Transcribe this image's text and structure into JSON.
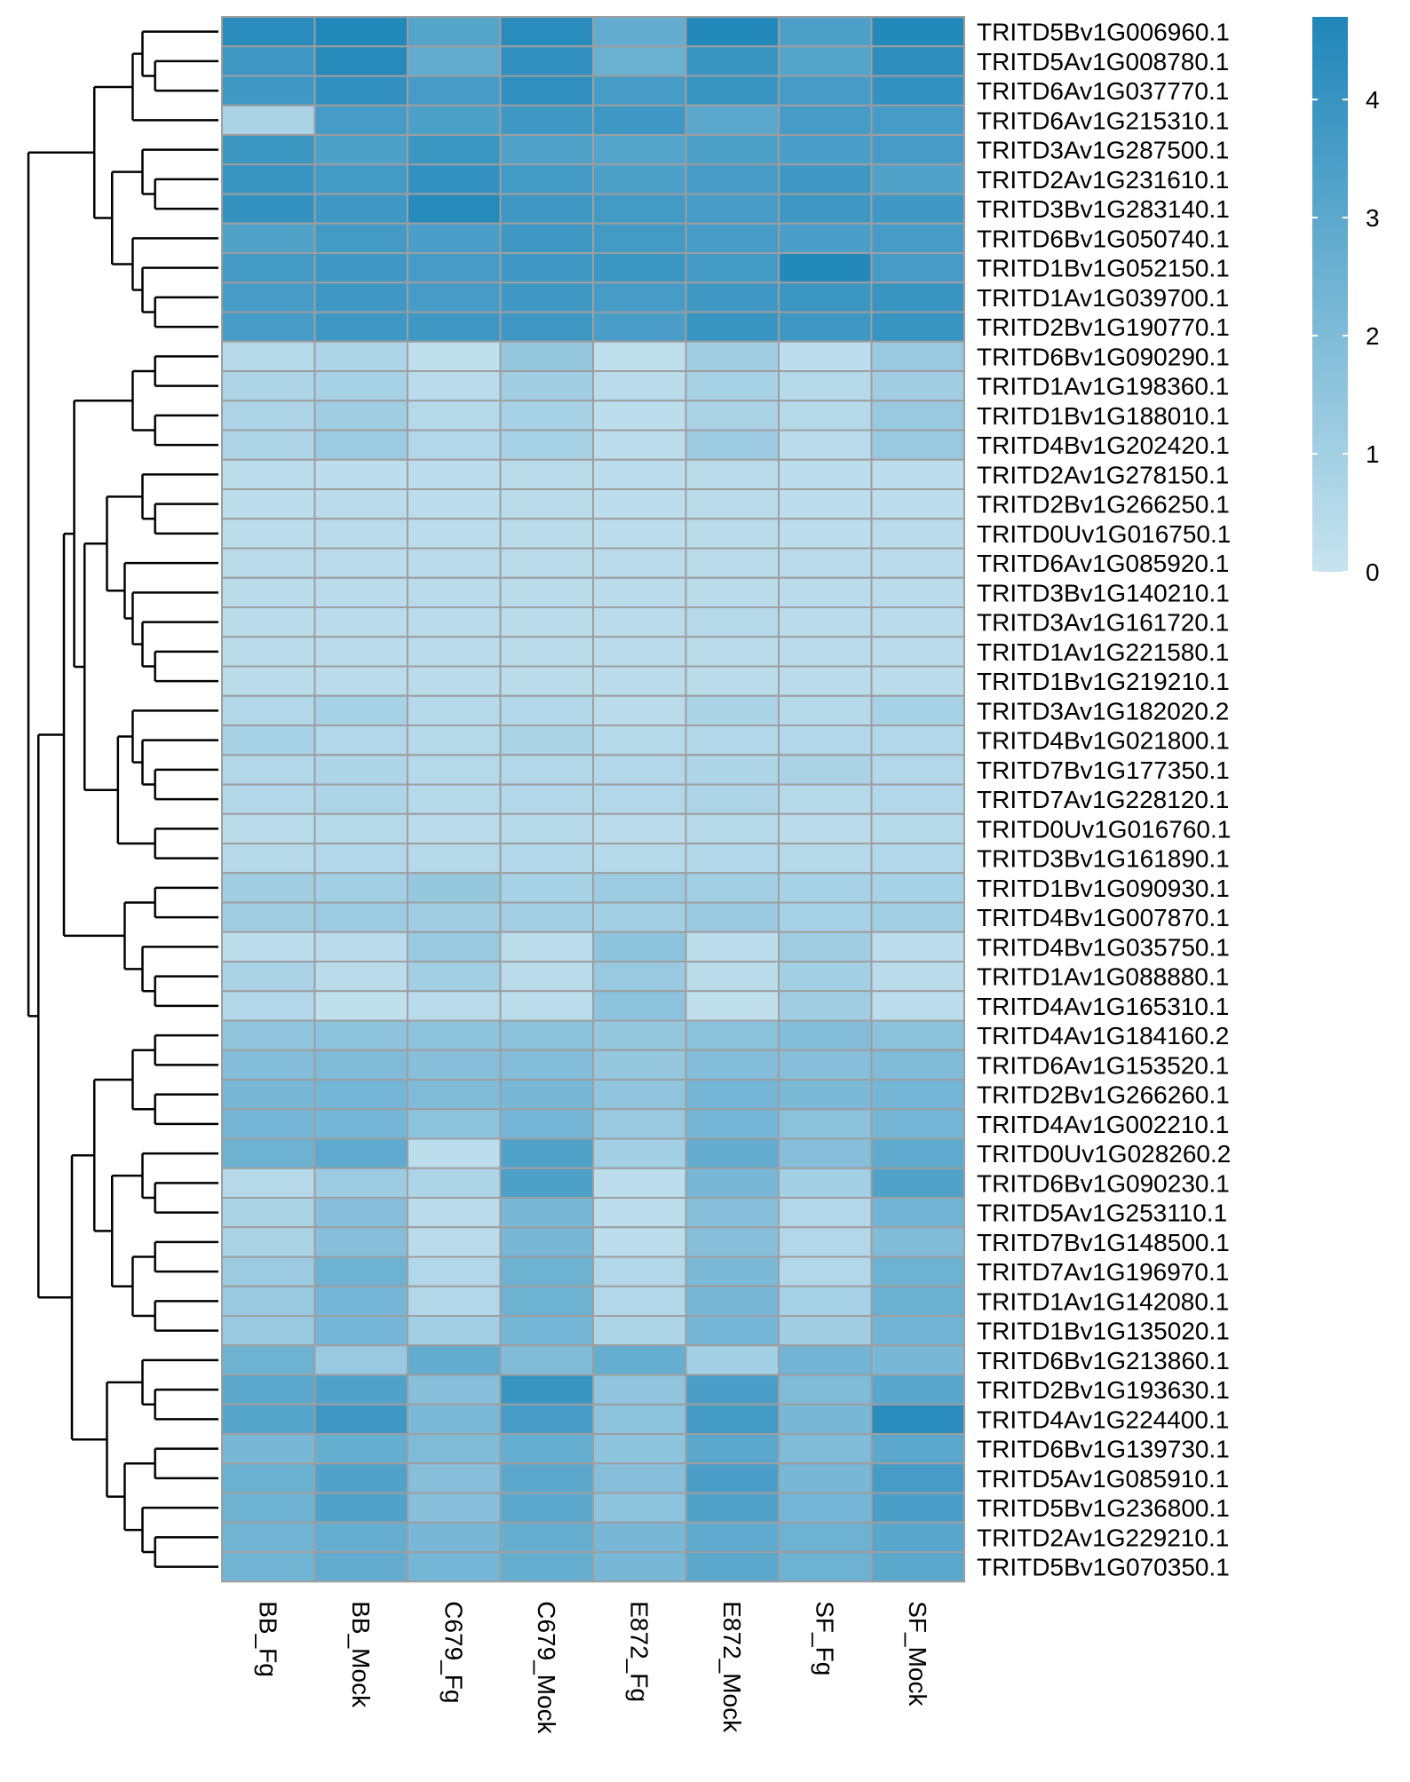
{
  "chart_data": {
    "type": "heatmap",
    "title": "",
    "columns": [
      "BB_Fg",
      "BB_Mock",
      "C679_Fg",
      "C679_Mock",
      "E872_Fg",
      "E872_Mock",
      "SF_Fg",
      "SF_Mock"
    ],
    "rows": [
      "TRITD5Bv1G006960.1",
      "TRITD5Av1G008780.1",
      "TRITD6Av1G037770.1",
      "TRITD6Av1G215310.1",
      "TRITD3Av1G287500.1",
      "TRITD2Av1G231610.1",
      "TRITD3Bv1G283140.1",
      "TRITD6Bv1G050740.1",
      "TRITD1Bv1G052150.1",
      "TRITD1Av1G039700.1",
      "TRITD2Bv1G190770.1",
      "TRITD6Bv1G090290.1",
      "TRITD1Av1G198360.1",
      "TRITD1Bv1G188010.1",
      "TRITD4Bv1G202420.1",
      "TRITD2Av1G278150.1",
      "TRITD2Bv1G266250.1",
      "TRITD0Uv1G016750.1",
      "TRITD6Av1G085920.1",
      "TRITD3Bv1G140210.1",
      "TRITD3Av1G161720.1",
      "TRITD1Av1G221580.1",
      "TRITD1Bv1G219210.1",
      "TRITD3Av1G182020.2",
      "TRITD4Bv1G021800.1",
      "TRITD7Bv1G177350.1",
      "TRITD7Av1G228120.1",
      "TRITD0Uv1G016760.1",
      "TRITD3Bv1G161890.1",
      "TRITD1Bv1G090930.1",
      "TRITD4Bv1G007870.1",
      "TRITD4Bv1G035750.1",
      "TRITD1Av1G088880.1",
      "TRITD4Av1G165310.1",
      "TRITD4Av1G184160.2",
      "TRITD6Av1G153520.1",
      "TRITD2Bv1G266260.1",
      "TRITD4Av1G002210.1",
      "TRITD0Uv1G028260.2",
      "TRITD6Bv1G090230.1",
      "TRITD5Av1G253110.1",
      "TRITD7Bv1G148500.1",
      "TRITD7Av1G196970.1",
      "TRITD1Av1G142080.1",
      "TRITD1Bv1G135020.1",
      "TRITD6Bv1G213860.1",
      "TRITD2Bv1G193630.1",
      "TRITD4Av1G224400.1",
      "TRITD6Bv1G139730.1",
      "TRITD5Av1G085910.1",
      "TRITD5Bv1G236800.1",
      "TRITD2Av1G229210.1",
      "TRITD5Bv1G070350.1"
    ],
    "values": [
      [
        4.4,
        4.6,
        3.2,
        4.4,
        2.8,
        4.6,
        3.4,
        4.6
      ],
      [
        3.8,
        4.5,
        2.8,
        4.2,
        2.6,
        4.0,
        3.2,
        4.3
      ],
      [
        3.8,
        4.2,
        3.6,
        4.2,
        3.6,
        4.0,
        3.6,
        4.1
      ],
      [
        0.8,
        3.6,
        3.4,
        3.8,
        3.8,
        3.0,
        3.6,
        3.6
      ],
      [
        3.9,
        3.4,
        3.9,
        3.3,
        3.2,
        3.4,
        3.5,
        3.6
      ],
      [
        4.0,
        3.7,
        4.1,
        3.7,
        3.4,
        3.6,
        3.8,
        3.3
      ],
      [
        4.1,
        3.8,
        4.5,
        3.8,
        3.7,
        3.6,
        3.8,
        3.8
      ],
      [
        3.3,
        3.7,
        3.5,
        3.8,
        3.7,
        3.6,
        3.5,
        3.6
      ],
      [
        3.7,
        3.8,
        3.6,
        3.8,
        3.9,
        3.7,
        4.6,
        3.6
      ],
      [
        3.6,
        3.8,
        3.6,
        3.8,
        3.6,
        3.8,
        3.9,
        4.0
      ],
      [
        3.6,
        3.8,
        3.8,
        3.8,
        3.5,
        4.0,
        3.8,
        4.0
      ],
      [
        0.5,
        0.7,
        0.2,
        1.4,
        0.2,
        1.1,
        0.3,
        1.3
      ],
      [
        0.7,
        0.9,
        0.4,
        1.1,
        0.4,
        0.9,
        0.5,
        1.1
      ],
      [
        0.7,
        1.1,
        0.5,
        0.9,
        0.3,
        0.8,
        0.5,
        1.3
      ],
      [
        0.7,
        1.2,
        0.6,
        0.9,
        0.3,
        1.2,
        0.4,
        1.3
      ],
      [
        0.3,
        0.3,
        0.3,
        0.4,
        0.3,
        0.4,
        0.3,
        0.3
      ],
      [
        0.3,
        0.4,
        0.3,
        0.4,
        0.3,
        0.4,
        0.3,
        0.3
      ],
      [
        0.3,
        0.4,
        0.3,
        0.4,
        0.3,
        0.4,
        0.3,
        0.4
      ],
      [
        0.4,
        0.4,
        0.4,
        0.4,
        0.4,
        0.4,
        0.4,
        0.4
      ],
      [
        0.4,
        0.4,
        0.4,
        0.4,
        0.4,
        0.4,
        0.4,
        0.4
      ],
      [
        0.4,
        0.4,
        0.4,
        0.4,
        0.4,
        0.5,
        0.4,
        0.4
      ],
      [
        0.4,
        0.4,
        0.4,
        0.4,
        0.4,
        0.4,
        0.4,
        0.4
      ],
      [
        0.4,
        0.4,
        0.4,
        0.4,
        0.4,
        0.4,
        0.4,
        0.4
      ],
      [
        0.6,
        0.9,
        0.5,
        0.6,
        0.4,
        0.8,
        0.5,
        0.9
      ],
      [
        0.9,
        0.6,
        0.5,
        0.8,
        0.5,
        0.6,
        0.6,
        0.6
      ],
      [
        0.6,
        0.7,
        0.5,
        0.6,
        0.6,
        0.7,
        0.8,
        0.6
      ],
      [
        0.6,
        0.7,
        0.5,
        0.6,
        0.6,
        0.7,
        0.5,
        0.6
      ],
      [
        0.4,
        0.5,
        0.4,
        0.5,
        0.4,
        0.5,
        0.4,
        0.5
      ],
      [
        0.5,
        0.6,
        0.5,
        0.6,
        0.5,
        0.6,
        0.5,
        0.6
      ],
      [
        1.1,
        1.0,
        1.4,
        0.9,
        1.2,
        1.0,
        0.9,
        0.9
      ],
      [
        1.1,
        1.2,
        1.1,
        1.0,
        1.0,
        1.3,
        0.9,
        1.0
      ],
      [
        0.3,
        0.4,
        1.3,
        0.3,
        1.6,
        0.3,
        1.1,
        0.3
      ],
      [
        0.8,
        0.4,
        1.0,
        0.4,
        1.3,
        0.4,
        1.0,
        0.4
      ],
      [
        0.6,
        0.2,
        0.4,
        0.3,
        1.6,
        0.2,
        1.1,
        0.3
      ],
      [
        1.5,
        1.6,
        1.6,
        1.7,
        1.4,
        1.7,
        1.9,
        1.7
      ],
      [
        1.9,
        2.0,
        1.8,
        1.9,
        1.4,
        1.9,
        1.8,
        2.0
      ],
      [
        2.2,
        2.3,
        2.0,
        2.2,
        1.5,
        2.3,
        2.1,
        2.3
      ],
      [
        2.3,
        2.3,
        1.6,
        2.3,
        1.3,
        2.3,
        1.7,
        2.3
      ],
      [
        2.5,
        2.9,
        0.3,
        3.3,
        1.0,
        2.8,
        1.8,
        2.9
      ],
      [
        0.5,
        1.2,
        0.7,
        3.4,
        0.3,
        2.2,
        1.0,
        3.3
      ],
      [
        0.8,
        1.8,
        0.4,
        2.2,
        0.3,
        1.8,
        0.6,
        2.4
      ],
      [
        0.8,
        1.8,
        0.4,
        2.2,
        0.3,
        1.8,
        0.6,
        2.0
      ],
      [
        1.2,
        2.5,
        0.6,
        2.5,
        0.6,
        2.1,
        0.6,
        2.5
      ],
      [
        1.3,
        2.3,
        0.6,
        2.5,
        0.6,
        2.2,
        0.9,
        2.6
      ],
      [
        1.3,
        2.3,
        1.0,
        2.3,
        0.7,
        2.3,
        1.1,
        2.4
      ],
      [
        2.5,
        1.3,
        2.8,
        2.0,
        2.7,
        1.0,
        2.4,
        2.2
      ],
      [
        3.0,
        3.3,
        1.8,
        4.0,
        1.5,
        3.5,
        2.0,
        3.1
      ],
      [
        3.2,
        3.8,
        2.1,
        3.6,
        1.6,
        3.7,
        2.2,
        4.4
      ],
      [
        2.2,
        2.7,
        2.0,
        2.7,
        1.6,
        3.0,
        2.0,
        3.0
      ],
      [
        2.6,
        3.3,
        1.8,
        3.0,
        1.8,
        3.5,
        2.2,
        3.6
      ],
      [
        2.5,
        3.3,
        1.8,
        3.0,
        1.6,
        3.3,
        2.3,
        3.5
      ],
      [
        2.4,
        2.7,
        2.2,
        2.7,
        2.2,
        2.9,
        2.5,
        3.1
      ],
      [
        2.4,
        2.8,
        2.3,
        2.7,
        2.2,
        3.0,
        2.5,
        3.0
      ]
    ],
    "color_scale": {
      "min": 0,
      "max": 4.7,
      "low": "#c7e3ef",
      "high": "#1f86b9",
      "cell_border": "#9e9e9e"
    },
    "legend": {
      "ticks": [
        0,
        1,
        2,
        3,
        4
      ],
      "placement": "top-right"
    },
    "dendrogram": {
      "side": "left",
      "clustered": "rows"
    }
  }
}
